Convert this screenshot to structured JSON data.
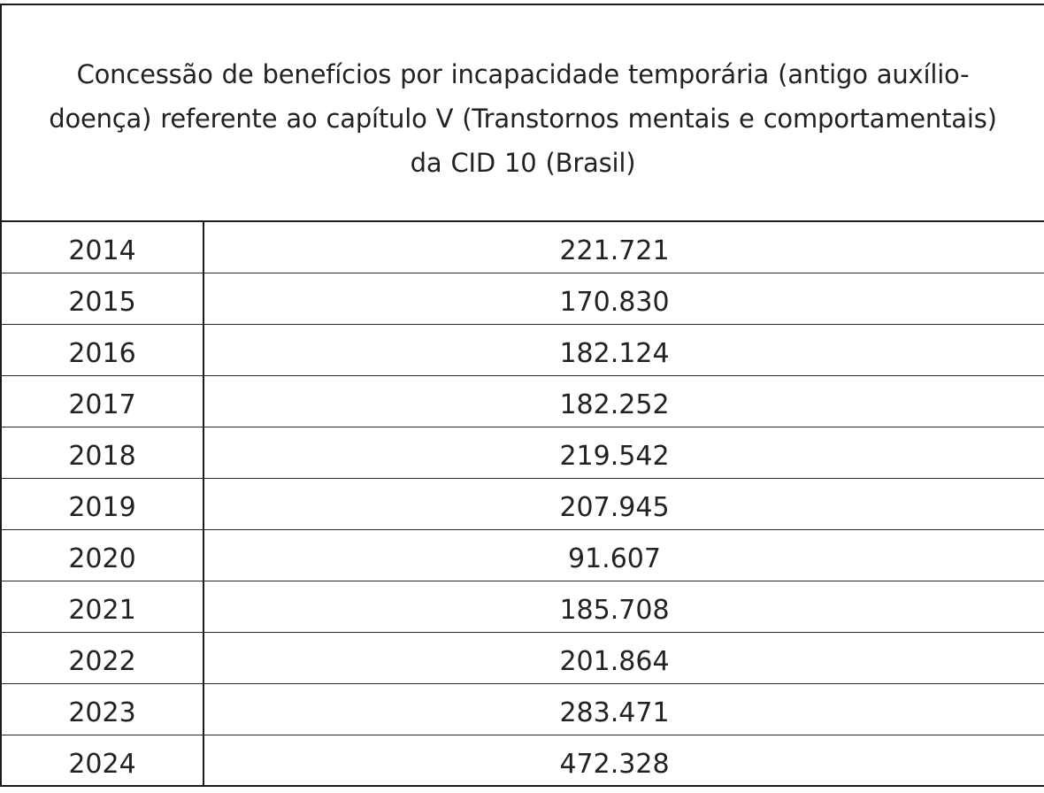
{
  "title": "Concessão de benefícios por incapacidade temporária (antigo auxílio- doença) referente ao capítulo V (Transtornos mentais e comportamentais) da CID 10 (Brasil)",
  "title_lines": [
    "Concessão de benefícios por incapacidade temporária (antigo auxílio-",
    "doença) referente ao capítulo V (Transtornos mentais e comportamentais)",
    "da CID 10 (Brasil)"
  ],
  "rows": [
    {
      "year": "2014",
      "value": "221.721"
    },
    {
      "year": "2015",
      "value": "170.830"
    },
    {
      "year": "2016",
      "value": "182.124"
    },
    {
      "year": "2017",
      "value": "182.252"
    },
    {
      "year": "2018",
      "value": "219.542"
    },
    {
      "year": "2019",
      "value": "207.945"
    },
    {
      "year": "2020",
      "value": "91.607"
    },
    {
      "year": "2021",
      "value": "185.708"
    },
    {
      "year": "2022",
      "value": "201.864"
    },
    {
      "year": "2023",
      "value": "283.471"
    },
    {
      "year": "2024",
      "value": "472.328"
    }
  ]
}
